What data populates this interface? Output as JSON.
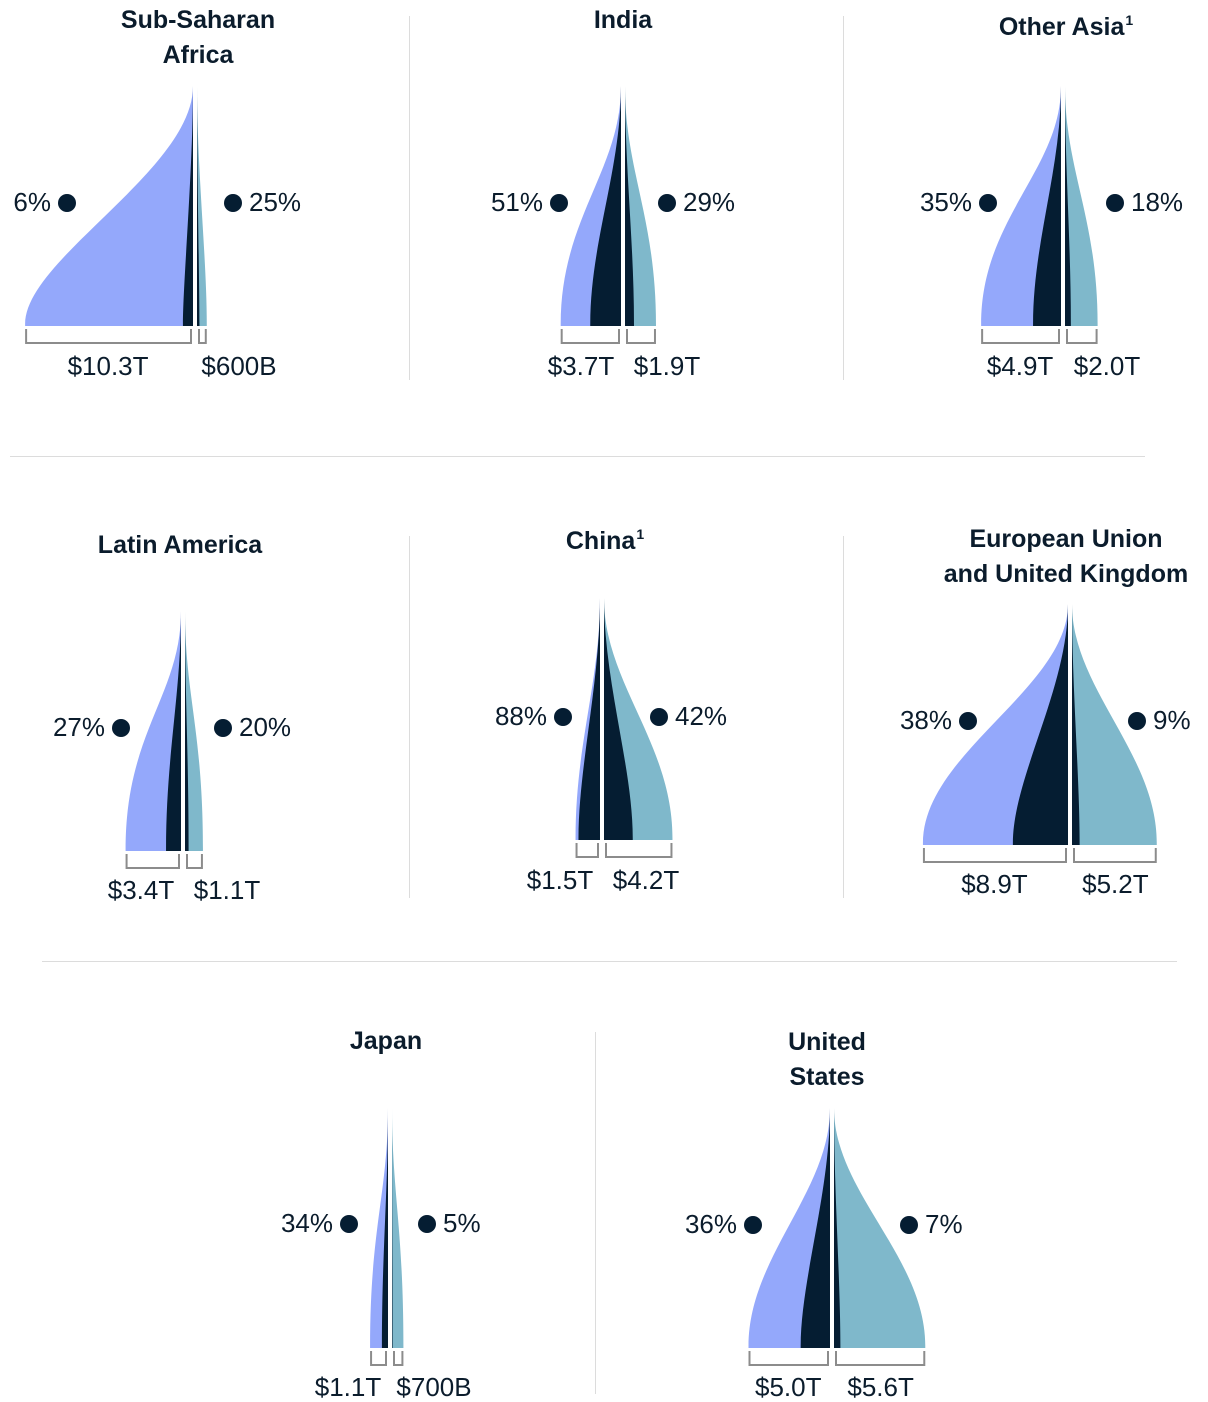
{
  "chart_data": {
    "type": "area",
    "colors": {
      "left_light": "#94a8fb",
      "left_dark": "#051d32",
      "right_dark": "#051d32",
      "right_light": "#7fb8cb",
      "dot": "#051d32",
      "bracket": "#8c8c8c"
    },
    "panels": [
      {
        "title": "Sub-Saharan Africa",
        "title_lines": [
          "Sub-Saharan",
          "Africa"
        ],
        "footnote": "",
        "left_value_label": "$10.3T",
        "right_value_label": "$600B",
        "left_percent_label": "6%",
        "right_percent_label": "25%",
        "left_value": 10.3,
        "right_value": 0.6,
        "left_percent": 6,
        "right_percent": 25
      },
      {
        "title": "India",
        "title_lines": [
          "India"
        ],
        "footnote": "",
        "left_value_label": "$3.7T",
        "right_value_label": "$1.9T",
        "left_percent_label": "51%",
        "right_percent_label": "29%",
        "left_value": 3.7,
        "right_value": 1.9,
        "left_percent": 51,
        "right_percent": 29
      },
      {
        "title": "Other Asia",
        "title_lines": [
          "Other Asia"
        ],
        "footnote": "1",
        "left_value_label": "$4.9T",
        "right_value_label": "$2.0T",
        "left_percent_label": "35%",
        "right_percent_label": "18%",
        "left_value": 4.9,
        "right_value": 2.0,
        "left_percent": 35,
        "right_percent": 18
      },
      {
        "title": "Latin America",
        "title_lines": [
          "Latin America"
        ],
        "footnote": "",
        "left_value_label": "$3.4T",
        "right_value_label": "$1.1T",
        "left_percent_label": "27%",
        "right_percent_label": "20%",
        "left_value": 3.4,
        "right_value": 1.1,
        "left_percent": 27,
        "right_percent": 20
      },
      {
        "title": "China",
        "title_lines": [
          "China"
        ],
        "footnote": "1",
        "left_value_label": "$1.5T",
        "right_value_label": "$4.2T",
        "left_percent_label": "88%",
        "right_percent_label": "42%",
        "left_value": 1.5,
        "right_value": 4.2,
        "left_percent": 88,
        "right_percent": 42
      },
      {
        "title": "European Union and United Kingdom",
        "title_lines": [
          "European Union",
          "and United Kingdom"
        ],
        "footnote": "",
        "left_value_label": "$8.9T",
        "right_value_label": "$5.2T",
        "left_percent_label": "38%",
        "right_percent_label": "9%",
        "left_value": 8.9,
        "right_value": 5.2,
        "left_percent": 38,
        "right_percent": 9
      },
      {
        "title": "Japan",
        "title_lines": [
          "Japan"
        ],
        "footnote": "",
        "left_value_label": "$1.1T",
        "right_value_label": "$700B",
        "left_percent_label": "34%",
        "right_percent_label": "5%",
        "left_value": 1.1,
        "right_value": 0.7,
        "left_percent": 34,
        "right_percent": 5
      },
      {
        "title": "United States",
        "title_lines": [
          "United",
          "States"
        ],
        "footnote": "",
        "left_value_label": "$5.0T",
        "right_value_label": "$5.6T",
        "left_percent_label": "36%",
        "right_percent_label": "7%",
        "left_value": 5.0,
        "right_value": 5.6,
        "left_percent": 36,
        "right_percent": 7
      }
    ]
  }
}
